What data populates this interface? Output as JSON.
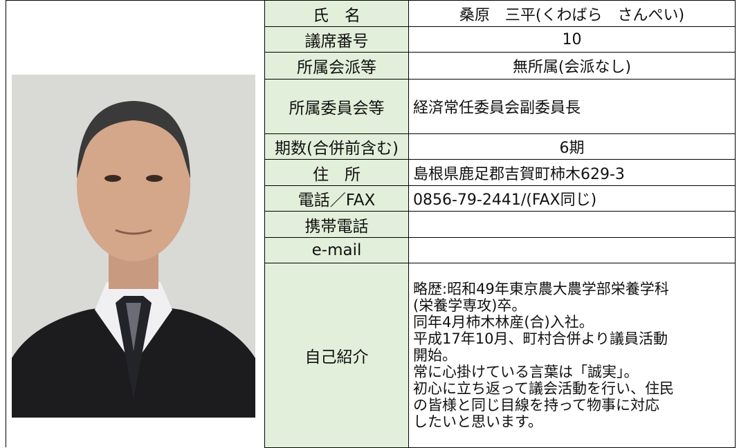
{
  "profile": {
    "rows": [
      {
        "label": "氏　名",
        "value": "桑原　三平(くわばら　さんぺい)",
        "align": "center"
      },
      {
        "label": "議席番号",
        "value": "10",
        "align": "center"
      },
      {
        "label": "所属会派等",
        "value": "無所属(会派なし)",
        "align": "center"
      },
      {
        "label": "所属委員会等",
        "value": "経済常任委員会副委員長",
        "align": "left"
      },
      {
        "label": "期数(合併前含む)",
        "value": "6期",
        "align": "center"
      },
      {
        "label": "住　所",
        "value": "島根県鹿足郡吉賀町柿木629-3",
        "align": "left"
      },
      {
        "label": "電話／FAX",
        "value": "0856-79-2441/(FAX同じ)",
        "align": "left"
      },
      {
        "label": "携帯電話"
      },
      {
        "label": "e-mail"
      },
      {
        "label": "自己紹介",
        "value": [
          "略歴:昭和49年東京農大農学部栄養学科",
          "(栄養学専攻)卒。",
          "同年4月柿木林産(合)入社。",
          "平成17年10月、町村合併より議員活動",
          "開始。",
          "常に心掛けている言葉は「誠実」。",
          "初心に立ち返って議会活動を行い、住民",
          "の皆様と同じ目線を持って物事に対応",
          "したいと思います。"
        ],
        "align": "left"
      }
    ]
  }
}
